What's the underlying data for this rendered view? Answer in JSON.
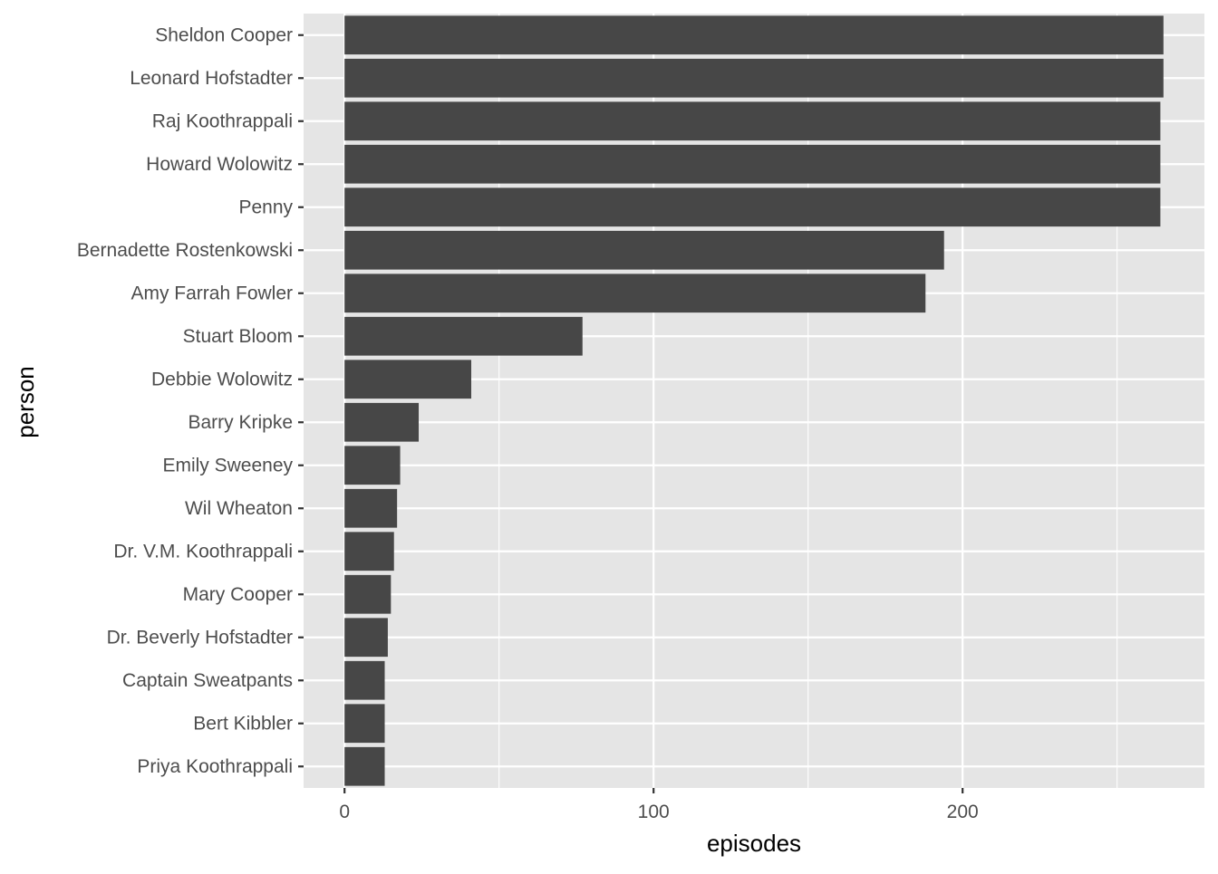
{
  "chart_data": {
    "type": "bar",
    "orientation": "horizontal",
    "title": "",
    "xlabel": "episodes",
    "ylabel": "person",
    "categories": [
      "Sheldon Cooper",
      "Leonard Hofstadter",
      "Raj Koothrappali",
      "Howard Wolowitz",
      "Penny",
      "Bernadette Rostenkowski",
      "Amy Farrah Fowler",
      "Stuart Bloom",
      "Debbie Wolowitz",
      "Barry Kripke",
      "Emily Sweeney",
      "Wil Wheaton",
      "Dr. V.M. Koothrappali",
      "Mary Cooper",
      "Dr. Beverly Hofstadter",
      "Captain Sweatpants",
      "Bert Kibbler",
      "Priya Koothrappali"
    ],
    "values": [
      265,
      265,
      264,
      264,
      264,
      194,
      188,
      77,
      41,
      24,
      18,
      17,
      16,
      15,
      14,
      13,
      13,
      13
    ],
    "xlim": [
      -13.25,
      278.25
    ],
    "xticks": [
      0,
      100,
      200
    ],
    "xtick_labels": [
      "0",
      "100",
      "200"
    ],
    "x_minor_gridlines": [
      50,
      150,
      250
    ],
    "grid": true,
    "legend": "none",
    "colors": {
      "bar": "#474747",
      "panel_background": "#e5e5e5",
      "grid": "#ffffff",
      "axis_text": "#4d4d4d",
      "axis_title": "#000000",
      "tick": "#333333"
    }
  }
}
